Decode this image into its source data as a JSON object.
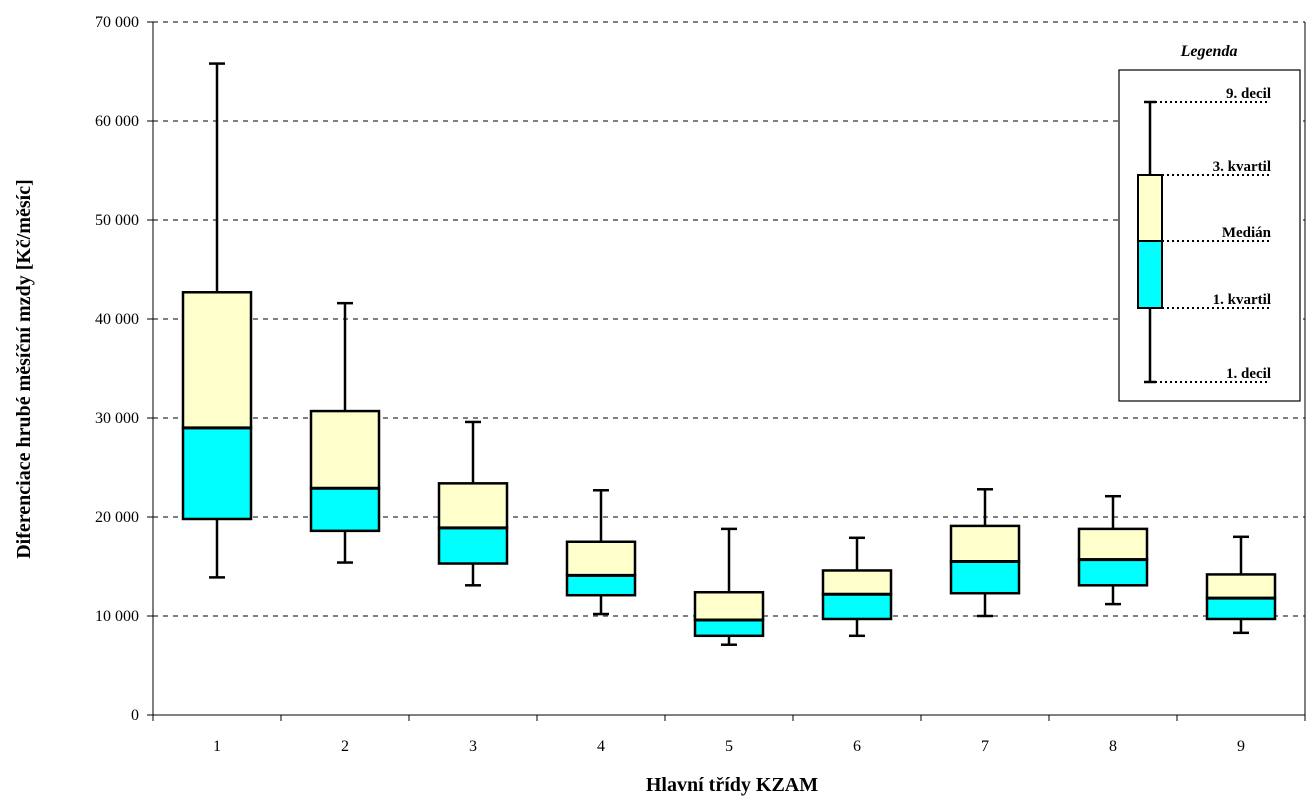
{
  "chart_data": {
    "type": "box",
    "xlabel": "Hlavní třídy KZAM",
    "ylabel": "Diferenciace hrubé měsíční mzdy [Kč/měsíc]",
    "ylim": [
      0,
      70000
    ],
    "yticks": [
      0,
      10000,
      20000,
      30000,
      40000,
      50000,
      60000,
      70000
    ],
    "ytick_labels": [
      "0",
      "10 000",
      "20 000",
      "30 000",
      "40 000",
      "50 000",
      "60 000",
      "70 000"
    ],
    "grid": "horizontal dashed",
    "categories": [
      "1",
      "2",
      "3",
      "4",
      "5",
      "6",
      "7",
      "8",
      "9"
    ],
    "boxes": [
      {
        "d1": 13900,
        "q1": 19800,
        "median": 29000,
        "q3": 42700,
        "d9": 65800
      },
      {
        "d1": 15400,
        "q1": 18600,
        "median": 22900,
        "q3": 30700,
        "d9": 41600
      },
      {
        "d1": 13100,
        "q1": 15300,
        "median": 18900,
        "q3": 23400,
        "d9": 29600
      },
      {
        "d1": 10200,
        "q1": 12100,
        "median": 14100,
        "q3": 17500,
        "d9": 22700
      },
      {
        "d1": 7100,
        "q1": 8000,
        "median": 9600,
        "q3": 12400,
        "d9": 18800
      },
      {
        "d1": 8000,
        "q1": 9700,
        "median": 12200,
        "q3": 14600,
        "d9": 17900
      },
      {
        "d1": 10000,
        "q1": 12300,
        "median": 15500,
        "q3": 19100,
        "d9": 22800
      },
      {
        "d1": 11200,
        "q1": 13100,
        "median": 15700,
        "q3": 18800,
        "d9": 22100
      },
      {
        "d1": 8300,
        "q1": 9700,
        "median": 11800,
        "q3": 14200,
        "d9": 18000
      }
    ],
    "colors": {
      "upper_box": "#ffffcc",
      "lower_box": "#00ffff",
      "stroke": "#000000",
      "grid": "#000000"
    },
    "legend": {
      "title": "Legenda",
      "placement": "top-right",
      "labels": {
        "d9": "9. decil",
        "q3": "3. kvartil",
        "median": "Medián",
        "q1": "1. kvartil",
        "d1": "1. decil"
      }
    }
  }
}
